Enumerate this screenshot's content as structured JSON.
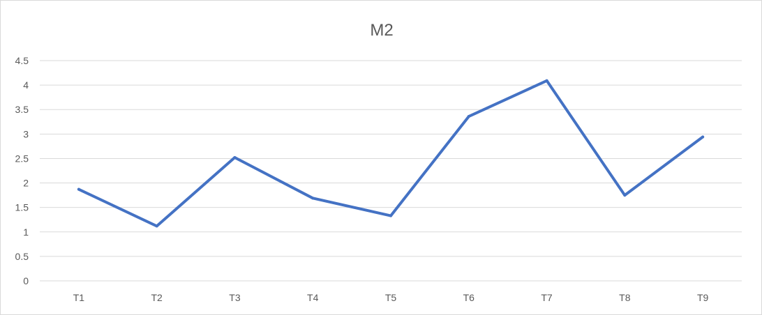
{
  "chart_data": {
    "type": "line",
    "title": "M2",
    "xlabel": "",
    "ylabel": "",
    "categories": [
      "T1",
      "T2",
      "T3",
      "T4",
      "T5",
      "T6",
      "T7",
      "T8",
      "T9"
    ],
    "series": [
      {
        "values": [
          1.87,
          1.12,
          2.52,
          1.69,
          1.33,
          3.36,
          4.09,
          1.75,
          2.94
        ],
        "color": "#4472c4"
      }
    ],
    "ylim": [
      0,
      4.5
    ],
    "yticks": [
      0,
      0.5,
      1,
      1.5,
      2,
      2.5,
      3,
      3.5,
      4,
      4.5
    ],
    "ytick_labels": [
      "0",
      "0.5",
      "1",
      "1.5",
      "2",
      "2.5",
      "3",
      "3.5",
      "4",
      "4.5"
    ],
    "grid": true,
    "legend": "none",
    "colors": {
      "gridline": "#d9d9d9",
      "text": "#595959",
      "border": "#d9d9d9"
    }
  }
}
